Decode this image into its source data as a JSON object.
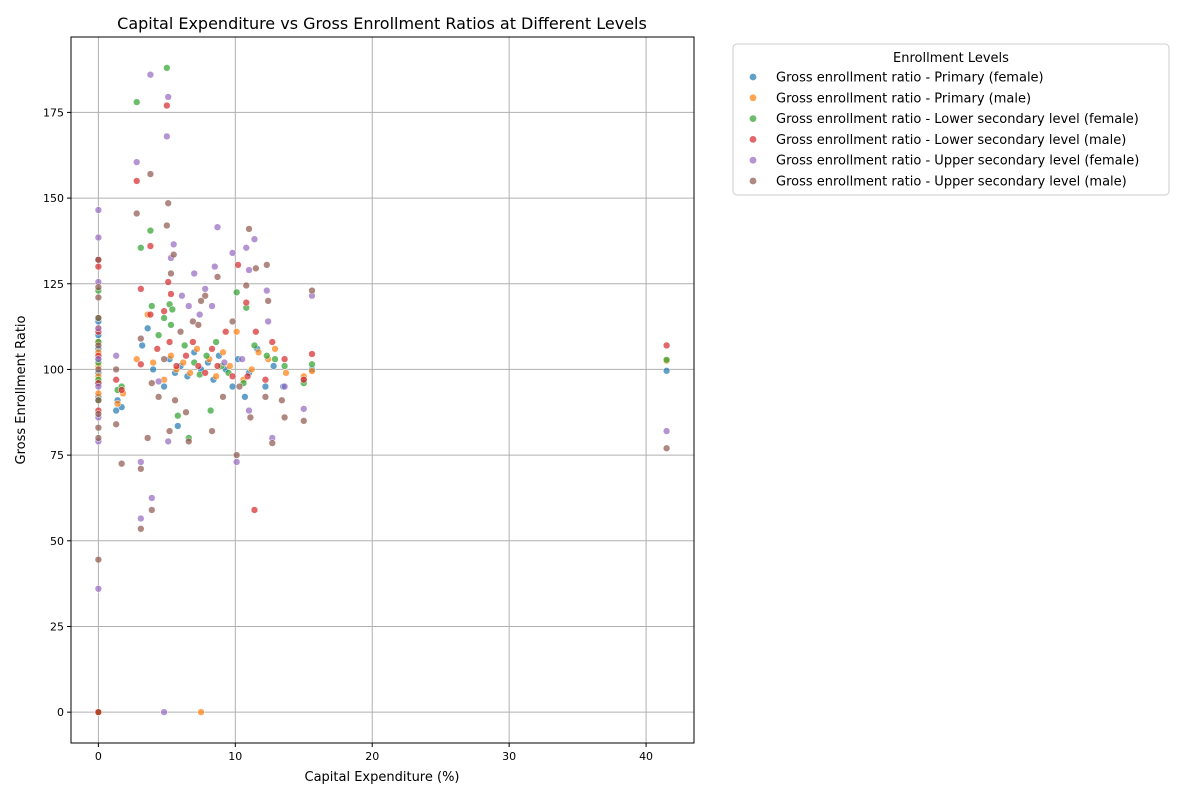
{
  "chart_data": {
    "type": "scatter",
    "title": "Capital Expenditure vs Gross Enrollment Ratios at Different Levels",
    "xlabel": "Capital Expenditure (%)",
    "ylabel": "Gross Enrollment Ratio",
    "xlim": [
      -2,
      43.5
    ],
    "ylim": [
      -9,
      197
    ],
    "xticks": [
      0,
      10,
      20,
      30,
      40
    ],
    "yticks": [
      0,
      25,
      50,
      75,
      100,
      125,
      150,
      175
    ],
    "grid": true,
    "legend_title": "Enrollment Levels",
    "legend_position": "outside-right",
    "series": [
      {
        "name": "Gross enrollment ratio - Primary (female)",
        "color": "#1f77b4",
        "points": [
          [
            0,
            0
          ],
          [
            0,
            96
          ],
          [
            0,
            99
          ],
          [
            0,
            103
          ],
          [
            0,
            106
          ],
          [
            0,
            110
          ],
          [
            0,
            114
          ],
          [
            0,
            92
          ],
          [
            1.3,
            88
          ],
          [
            1.7,
            89
          ],
          [
            1.4,
            91
          ],
          [
            3.2,
            107
          ],
          [
            3.6,
            112
          ],
          [
            4.0,
            100
          ],
          [
            4.8,
            95
          ],
          [
            5.2,
            103
          ],
          [
            5.6,
            99
          ],
          [
            5.8,
            83.5
          ],
          [
            6.0,
            101
          ],
          [
            6.5,
            98
          ],
          [
            7.0,
            105
          ],
          [
            7.5,
            100
          ],
          [
            8.0,
            102
          ],
          [
            8.4,
            97
          ],
          [
            8.8,
            104
          ],
          [
            9.3,
            100
          ],
          [
            9.8,
            95
          ],
          [
            10.2,
            103
          ],
          [
            10.7,
            92
          ],
          [
            11.0,
            99
          ],
          [
            11.6,
            106
          ],
          [
            12.2,
            95
          ],
          [
            12.8,
            101
          ],
          [
            13.5,
            95
          ],
          [
            15.0,
            97
          ],
          [
            15.6,
            100
          ],
          [
            41.5,
            99.6
          ]
        ]
      },
      {
        "name": "Gross enrollment ratio - Primary (male)",
        "color": "#ff7f0e",
        "points": [
          [
            0,
            0
          ],
          [
            0,
            98
          ],
          [
            0,
            101
          ],
          [
            0,
            105
          ],
          [
            0,
            108
          ],
          [
            0,
            112
          ],
          [
            0,
            93
          ],
          [
            1.4,
            90
          ],
          [
            1.8,
            93
          ],
          [
            2.8,
            103
          ],
          [
            3.6,
            116
          ],
          [
            4.0,
            102
          ],
          [
            4.8,
            97
          ],
          [
            5.3,
            104
          ],
          [
            5.7,
            100
          ],
          [
            6.2,
            102
          ],
          [
            6.7,
            99
          ],
          [
            7.2,
            106
          ],
          [
            7.5,
            0
          ],
          [
            8.1,
            103
          ],
          [
            8.6,
            98
          ],
          [
            9.1,
            105
          ],
          [
            9.6,
            101
          ],
          [
            10.1,
            111
          ],
          [
            10.6,
            97
          ],
          [
            11.2,
            100
          ],
          [
            11.7,
            105
          ],
          [
            12.4,
            103
          ],
          [
            12.9,
            106
          ],
          [
            13.7,
            99
          ],
          [
            15.0,
            98
          ],
          [
            15.6,
            99.5
          ],
          [
            41.5,
            102.5
          ]
        ]
      },
      {
        "name": "Gross enrollment ratio - Lower secondary level (female)",
        "color": "#2ca02c",
        "points": [
          [
            0,
            0
          ],
          [
            0,
            91
          ],
          [
            0,
            97
          ],
          [
            0,
            102
          ],
          [
            0,
            108
          ],
          [
            0,
            115
          ],
          [
            0,
            123
          ],
          [
            1.4,
            94
          ],
          [
            1.7,
            95
          ],
          [
            2.8,
            178
          ],
          [
            3.1,
            135.5
          ],
          [
            3.8,
            140.5
          ],
          [
            3.9,
            118.5
          ],
          [
            4.4,
            110
          ],
          [
            4.8,
            115
          ],
          [
            5.0,
            188
          ],
          [
            5.2,
            119
          ],
          [
            5.3,
            113
          ],
          [
            5.4,
            117.5
          ],
          [
            5.8,
            86.5
          ],
          [
            6.3,
            107
          ],
          [
            6.6,
            80
          ],
          [
            7.0,
            102
          ],
          [
            7.4,
            98.5
          ],
          [
            7.9,
            104
          ],
          [
            8.2,
            88
          ],
          [
            8.6,
            108
          ],
          [
            9.0,
            101
          ],
          [
            9.5,
            99
          ],
          [
            10.1,
            122.5
          ],
          [
            10.6,
            96
          ],
          [
            10.8,
            118
          ],
          [
            11.4,
            107
          ],
          [
            12.3,
            104
          ],
          [
            12.9,
            103
          ],
          [
            13.6,
            101
          ],
          [
            15.0,
            96
          ],
          [
            15.6,
            101.5
          ],
          [
            41.5,
            102.8
          ]
        ]
      },
      {
        "name": "Gross enrollment ratio - Lower secondary level (male)",
        "color": "#d62728",
        "points": [
          [
            0,
            0
          ],
          [
            0,
            130
          ],
          [
            0,
            132
          ],
          [
            0,
            111
          ],
          [
            0,
            104
          ],
          [
            0,
            96
          ],
          [
            0,
            88
          ],
          [
            1.3,
            97
          ],
          [
            1.7,
            94
          ],
          [
            2.8,
            155
          ],
          [
            3.1,
            123.5
          ],
          [
            3.1,
            101.5
          ],
          [
            3.8,
            136
          ],
          [
            3.8,
            116
          ],
          [
            4.3,
            106
          ],
          [
            4.8,
            117
          ],
          [
            5.0,
            177
          ],
          [
            5.1,
            125.5
          ],
          [
            5.3,
            122
          ],
          [
            5.2,
            108
          ],
          [
            5.7,
            101
          ],
          [
            6.4,
            104
          ],
          [
            6.9,
            108
          ],
          [
            7.3,
            101
          ],
          [
            7.8,
            99
          ],
          [
            8.3,
            106
          ],
          [
            8.7,
            101
          ],
          [
            9.3,
            111
          ],
          [
            9.8,
            98
          ],
          [
            10.2,
            130.5
          ],
          [
            10.8,
            119.5
          ],
          [
            10.9,
            98
          ],
          [
            11.4,
            59
          ],
          [
            11.5,
            111
          ],
          [
            12.2,
            97
          ],
          [
            12.7,
            108
          ],
          [
            13.6,
            103
          ],
          [
            15.0,
            97
          ],
          [
            15.6,
            104.5
          ],
          [
            41.5,
            107
          ]
        ]
      },
      {
        "name": "Gross enrollment ratio - Upper secondary level (female)",
        "color": "#9467bd",
        "points": [
          [
            0,
            36
          ],
          [
            0,
            79
          ],
          [
            0,
            86
          ],
          [
            0,
            95
          ],
          [
            0,
            103
          ],
          [
            0,
            112
          ],
          [
            0,
            125.5
          ],
          [
            0,
            138.5
          ],
          [
            0,
            146.5
          ],
          [
            1.3,
            104
          ],
          [
            2.8,
            160.5
          ],
          [
            3.1,
            56.5
          ],
          [
            3.1,
            73
          ],
          [
            3.8,
            186
          ],
          [
            3.9,
            62.5
          ],
          [
            4.4,
            96.5
          ],
          [
            4.8,
            0
          ],
          [
            5.0,
            168
          ],
          [
            5.1,
            179.5
          ],
          [
            5.1,
            79
          ],
          [
            5.3,
            132.5
          ],
          [
            5.5,
            136.5
          ],
          [
            6.1,
            121.5
          ],
          [
            6.6,
            118.5
          ],
          [
            7.0,
            128
          ],
          [
            7.4,
            116
          ],
          [
            7.8,
            123.5
          ],
          [
            8.3,
            118.5
          ],
          [
            8.5,
            130
          ],
          [
            8.7,
            141.5
          ],
          [
            9.2,
            102
          ],
          [
            9.8,
            134
          ],
          [
            10.1,
            73
          ],
          [
            10.5,
            103
          ],
          [
            10.8,
            135.5
          ],
          [
            11.0,
            129
          ],
          [
            11.0,
            88
          ],
          [
            11.4,
            138
          ],
          [
            12.3,
            123
          ],
          [
            12.4,
            114
          ],
          [
            12.7,
            80
          ],
          [
            13.6,
            95
          ],
          [
            15.0,
            88.5
          ],
          [
            15.6,
            121.5
          ],
          [
            41.5,
            82
          ]
        ]
      },
      {
        "name": "Gross enrollment ratio - Upper secondary level (male)",
        "color": "#8c564b",
        "points": [
          [
            0,
            44.5
          ],
          [
            0,
            80
          ],
          [
            0,
            83
          ],
          [
            0,
            87
          ],
          [
            0,
            91
          ],
          [
            0,
            100
          ],
          [
            0,
            107
          ],
          [
            0,
            115
          ],
          [
            0,
            121
          ],
          [
            0,
            124
          ],
          [
            0,
            132
          ],
          [
            1.3,
            84
          ],
          [
            1.3,
            100
          ],
          [
            1.7,
            72.5
          ],
          [
            2.8,
            145.5
          ],
          [
            3.1,
            71
          ],
          [
            3.1,
            53.5
          ],
          [
            3.1,
            109
          ],
          [
            3.6,
            80
          ],
          [
            3.8,
            157
          ],
          [
            3.9,
            59
          ],
          [
            3.9,
            96
          ],
          [
            4.4,
            92
          ],
          [
            4.8,
            103
          ],
          [
            5.0,
            142
          ],
          [
            5.1,
            148.5
          ],
          [
            5.2,
            82
          ],
          [
            5.3,
            128
          ],
          [
            5.5,
            133.5
          ],
          [
            5.6,
            91
          ],
          [
            6.0,
            111
          ],
          [
            6.4,
            87.5
          ],
          [
            6.6,
            79
          ],
          [
            6.9,
            114
          ],
          [
            7.3,
            113
          ],
          [
            7.5,
            120
          ],
          [
            7.8,
            121.5
          ],
          [
            8.3,
            82
          ],
          [
            8.7,
            127
          ],
          [
            9.1,
            92
          ],
          [
            9.8,
            114
          ],
          [
            10.1,
            75
          ],
          [
            10.3,
            95
          ],
          [
            10.8,
            124.5
          ],
          [
            11.0,
            141
          ],
          [
            11.1,
            86
          ],
          [
            11.5,
            129.5
          ],
          [
            12.2,
            92
          ],
          [
            12.3,
            130.5
          ],
          [
            12.4,
            120
          ],
          [
            12.7,
            78.5
          ],
          [
            13.4,
            91
          ],
          [
            13.6,
            86
          ],
          [
            15.0,
            85
          ],
          [
            15.6,
            123
          ],
          [
            41.5,
            77
          ]
        ]
      }
    ]
  }
}
